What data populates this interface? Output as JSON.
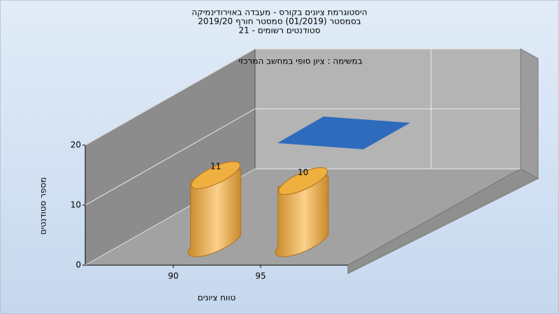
{
  "chart_data": {
    "type": "bar",
    "title": [
      "היסטוגרמת ציונים בקורס - מעבדה באוירודינמיקה",
      "בסמסטר  (01/2019)  סמסטר חורף 2019/20",
      "סטודנטים רשומים - 21"
    ],
    "annotation": "במשימה : ציון סופי במחשב המרכזי",
    "x_label": "טווח ציונים",
    "y_label": "מספר סטודנטים",
    "categories": [
      "90",
      "95"
    ],
    "values": [
      11,
      10
    ],
    "color": "#e0a040",
    "ylim": [
      0,
      20
    ],
    "yticks": [
      0,
      10,
      20
    ],
    "grid": true
  }
}
